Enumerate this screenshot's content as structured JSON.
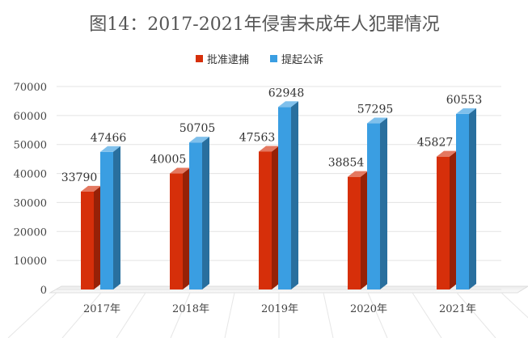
{
  "chart_data": {
    "type": "bar",
    "title": "图14：2017-2021年侵害未成年人犯罪情况",
    "xlabel": "",
    "ylabel": "",
    "categories": [
      "2017年",
      "2018年",
      "2019年",
      "2020年",
      "2021年"
    ],
    "series": [
      {
        "name": "批准逮捕",
        "color": "#d62f0a",
        "values": [
          33790,
          40005,
          47563,
          38854,
          45827
        ]
      },
      {
        "name": "提起公诉",
        "color": "#3a9ee2",
        "values": [
          47466,
          50705,
          62948,
          57295,
          60553
        ]
      }
    ],
    "ylim": [
      0,
      70000
    ],
    "yticks": [
      "0",
      "10000",
      "20000",
      "30000",
      "40000",
      "50000",
      "60000",
      "70000"
    ],
    "legend_position": "top-center",
    "grid": true,
    "style": "3d-column"
  }
}
